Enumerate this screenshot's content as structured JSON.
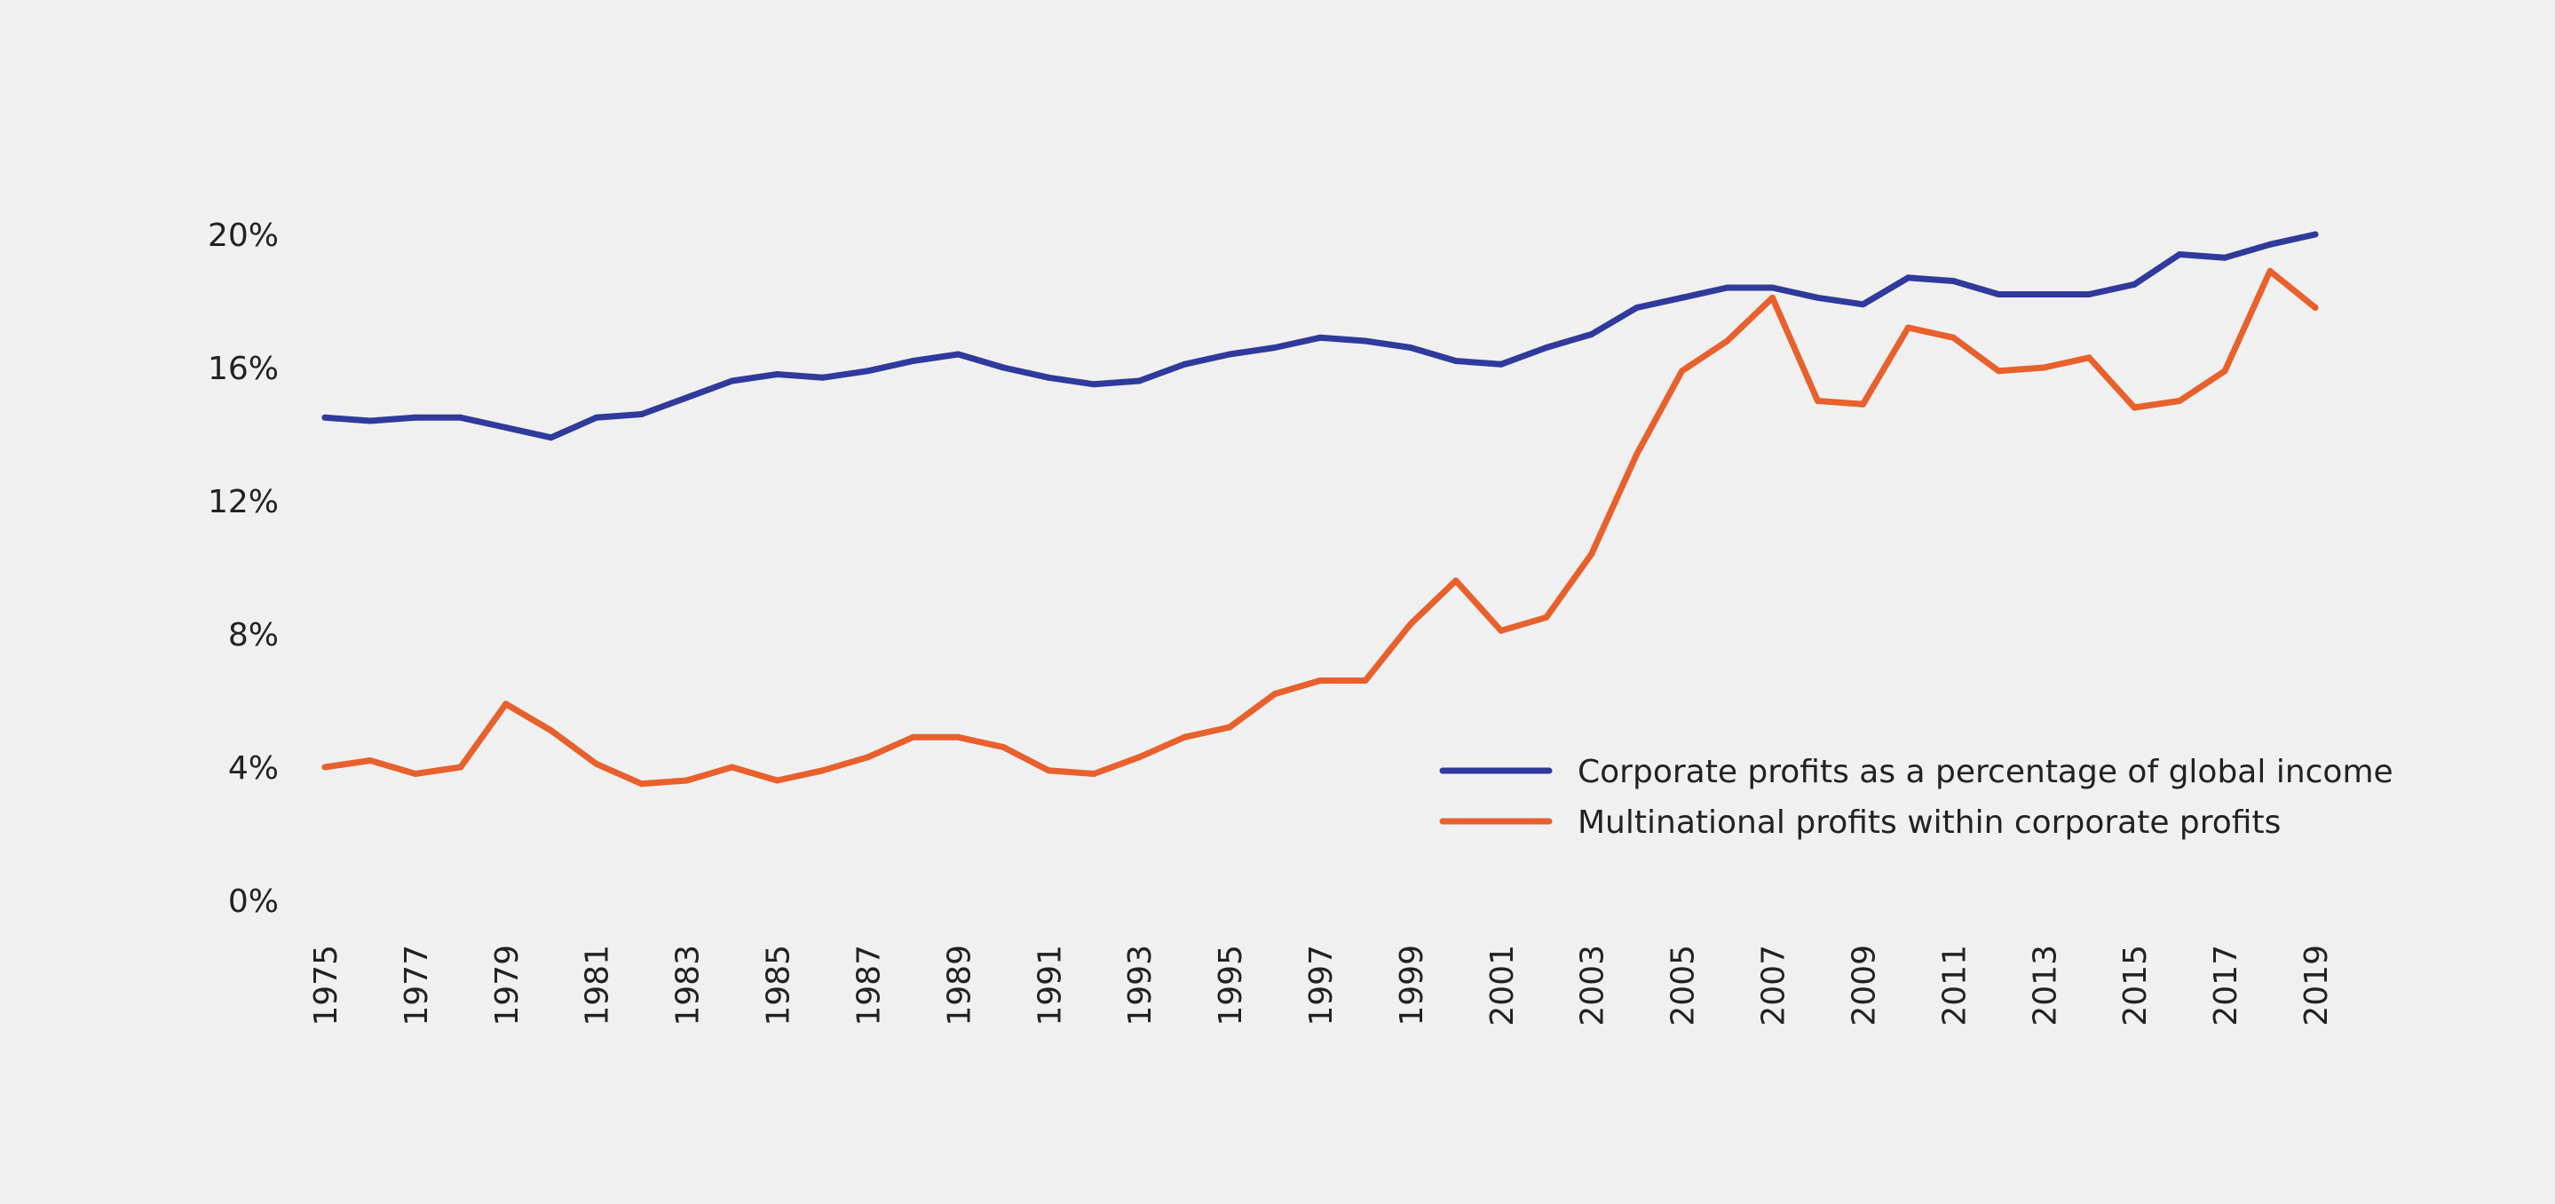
{
  "chart_data": {
    "type": "line",
    "title": "",
    "xlabel": "",
    "ylabel": "",
    "ylim": [
      0,
      20
    ],
    "yticks": [
      0,
      4,
      8,
      12,
      16,
      20
    ],
    "ytick_labels": [
      "0%",
      "4%",
      "8%",
      "12%",
      "16%",
      "20%"
    ],
    "grid": false,
    "legend_position": "lower-right",
    "x": [
      1975,
      1976,
      1977,
      1978,
      1979,
      1980,
      1981,
      1982,
      1983,
      1984,
      1985,
      1986,
      1987,
      1988,
      1989,
      1990,
      1991,
      1992,
      1993,
      1994,
      1995,
      1996,
      1997,
      1998,
      1999,
      2000,
      2001,
      2002,
      2003,
      2004,
      2005,
      2006,
      2007,
      2008,
      2009,
      2010,
      2011,
      2012,
      2013,
      2014,
      2015,
      2016,
      2017,
      2018,
      2019
    ],
    "xtick_labels": [
      "1975",
      "1977",
      "1979",
      "1981",
      "1983",
      "1985",
      "1987",
      "1989",
      "1991",
      "1993",
      "1995",
      "1997",
      "1999",
      "2001",
      "2003",
      "2005",
      "2007",
      "2009",
      "2011",
      "2013",
      "2015",
      "2017",
      "2019"
    ],
    "series": [
      {
        "name": "Corporate profits as a percentage of global income",
        "color": "#2f3a9c",
        "values": [
          14.5,
          14.4,
          14.5,
          14.5,
          14.2,
          13.9,
          14.5,
          14.6,
          15.1,
          15.6,
          15.8,
          15.7,
          15.9,
          16.2,
          16.4,
          16.0,
          15.7,
          15.5,
          15.6,
          16.1,
          16.4,
          16.6,
          16.9,
          16.8,
          16.6,
          16.2,
          16.1,
          16.6,
          17.0,
          17.8,
          18.1,
          18.4,
          18.4,
          18.1,
          17.9,
          18.7,
          18.6,
          18.2,
          18.2,
          18.2,
          18.5,
          19.4,
          19.3,
          19.7,
          20.0
        ]
      },
      {
        "name": "Multinational profits within corporate profits",
        "color": "#e8602c",
        "values": [
          4.0,
          4.2,
          3.8,
          4.0,
          5.9,
          5.1,
          4.1,
          3.5,
          3.6,
          4.0,
          3.6,
          3.9,
          4.3,
          4.9,
          4.9,
          4.6,
          3.9,
          3.8,
          4.3,
          4.9,
          5.2,
          6.2,
          6.6,
          6.6,
          8.3,
          9.6,
          8.1,
          8.5,
          10.4,
          13.4,
          15.9,
          16.8,
          18.1,
          15.0,
          14.9,
          17.2,
          16.9,
          15.9,
          16.0,
          16.3,
          14.8,
          15.0,
          15.9,
          18.9,
          17.8
        ]
      }
    ]
  }
}
